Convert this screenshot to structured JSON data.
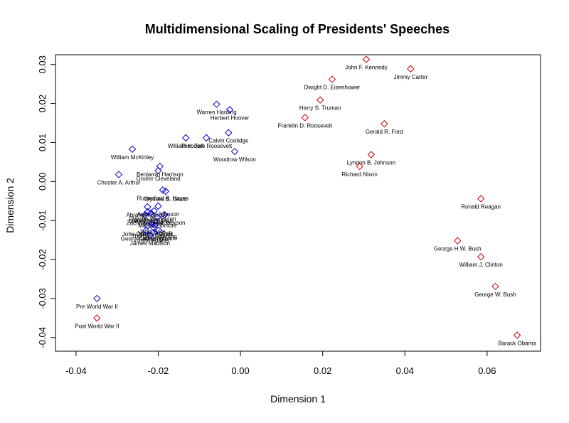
{
  "chart_data": {
    "type": "scatter",
    "title": "Multidimensional Scaling of Presidents' Speeches",
    "xlabel": "Dimension 1",
    "ylabel": "Dimension 2",
    "xlim": [
      -0.045,
      0.073
    ],
    "ylim": [
      -0.0435,
      0.0325
    ],
    "x_ticks": [
      -0.04,
      -0.02,
      0.0,
      0.02,
      0.04,
      0.06
    ],
    "x_tick_labels": [
      "-0.04",
      "-0.02",
      "0.00",
      "0.02",
      "0.04",
      "0.06"
    ],
    "y_ticks": [
      -0.04,
      -0.03,
      -0.02,
      -0.01,
      0.0,
      0.01,
      0.02,
      0.03
    ],
    "y_tick_labels": [
      "-0.04",
      "-0.03",
      "-0.02",
      "-0.01",
      "0.00",
      "0.01",
      "0.02",
      "0.03"
    ],
    "grid": false,
    "marker": "diamond",
    "colors": {
      "pre_war": "#0000cc",
      "post_war": "#cc0000"
    },
    "points": [
      {
        "label": "Pre World War II",
        "x": -0.0349,
        "y": -0.03,
        "group": "pre_war"
      },
      {
        "label": "Post World War II",
        "x": -0.0349,
        "y": -0.035,
        "group": "post_war"
      },
      {
        "label": "John F. Kennedy",
        "x": 0.0306,
        "y": 0.0313,
        "group": "post_war"
      },
      {
        "label": "Jimmy Carter",
        "x": 0.0414,
        "y": 0.0289,
        "group": "post_war"
      },
      {
        "label": "Dwight D. Eisenhower",
        "x": 0.0223,
        "y": 0.0262,
        "group": "post_war"
      },
      {
        "label": "Harry S. Truman",
        "x": 0.0194,
        "y": 0.0209,
        "group": "post_war"
      },
      {
        "label": "Franklin D. Roosevelt",
        "x": 0.0157,
        "y": 0.0164,
        "group": "post_war"
      },
      {
        "label": "Gerald R. Ford",
        "x": 0.035,
        "y": 0.0148,
        "group": "post_war"
      },
      {
        "label": "Lyndon B. Johnson",
        "x": 0.0318,
        "y": 0.0069,
        "group": "post_war"
      },
      {
        "label": "Richard Nixon",
        "x": 0.029,
        "y": 0.0039,
        "group": "post_war"
      },
      {
        "label": "Ronald Reagan",
        "x": 0.0585,
        "y": -0.0044,
        "group": "post_war"
      },
      {
        "label": "George H.W. Bush",
        "x": 0.0528,
        "y": -0.0152,
        "group": "post_war"
      },
      {
        "label": "William J. Clinton",
        "x": 0.0585,
        "y": -0.0193,
        "group": "post_war"
      },
      {
        "label": "George W. Bush",
        "x": 0.062,
        "y": -0.0269,
        "group": "post_war"
      },
      {
        "label": "Barack Obama",
        "x": 0.0673,
        "y": -0.0394,
        "group": "post_war"
      },
      {
        "label": "Warren Harding",
        "x": -0.0058,
        "y": 0.0198,
        "group": "pre_war"
      },
      {
        "label": "Herbert Hoover",
        "x": -0.0026,
        "y": 0.0184,
        "group": "pre_war"
      },
      {
        "label": "Calvin Coolidge",
        "x": -0.0029,
        "y": 0.0125,
        "group": "pre_war"
      },
      {
        "label": "William H. Taft",
        "x": -0.0133,
        "y": 0.0112,
        "group": "pre_war"
      },
      {
        "label": "Theodore Roosevelt",
        "x": -0.0083,
        "y": 0.0112,
        "group": "pre_war"
      },
      {
        "label": "Woodrow Wilson",
        "x": -0.0014,
        "y": 0.0077,
        "group": "pre_war"
      },
      {
        "label": "William McKinley",
        "x": -0.0263,
        "y": 0.0083,
        "group": "pre_war"
      },
      {
        "label": "Benjamin Harrison",
        "x": -0.0196,
        "y": 0.0039,
        "group": "pre_war"
      },
      {
        "label": "Grover Cleveland",
        "x": -0.02,
        "y": 0.0028,
        "group": "pre_war"
      },
      {
        "label": "Chester A. Arthur",
        "x": -0.0296,
        "y": 0.0018,
        "group": "pre_war"
      },
      {
        "label": "Rutherford B. Hayes",
        "x": -0.0189,
        "y": -0.0022,
        "group": "pre_war"
      },
      {
        "label": "Ulysses S. Grant",
        "x": -0.0182,
        "y": -0.0025,
        "group": "pre_war"
      },
      {
        "label": "Andrew Johnson",
        "x": -0.02,
        "y": -0.0063,
        "group": "pre_war"
      },
      {
        "label": "Abraham Lincoln",
        "x": -0.0226,
        "y": -0.0065,
        "group": "pre_war"
      },
      {
        "label": "Martin Van Buren",
        "x": -0.021,
        "y": -0.0075,
        "group": "pre_war"
      },
      {
        "label": "Franklin Pierce",
        "x": -0.0226,
        "y": -0.0078,
        "group": "pre_war"
      },
      {
        "label": "James Buchanan",
        "x": -0.0218,
        "y": -0.0081,
        "group": "pre_war"
      },
      {
        "label": "Zachary Taylor",
        "x": -0.0232,
        "y": -0.0086,
        "group": "pre_war"
      },
      {
        "label": "Andrew Jackson",
        "x": -0.0185,
        "y": -0.0085,
        "group": "pre_war"
      },
      {
        "label": "Millard Fillmore",
        "x": -0.0202,
        "y": -0.0092,
        "group": "pre_war"
      },
      {
        "label": "John Tyler",
        "x": -0.0215,
        "y": -0.0108,
        "group": "pre_war"
      },
      {
        "label": "James K. Polk",
        "x": -0.0208,
        "y": -0.0112,
        "group": "pre_war"
      },
      {
        "label": "John Quincy Adams",
        "x": -0.0226,
        "y": -0.0114,
        "group": "pre_war"
      },
      {
        "label": "Thomas Jefferson",
        "x": -0.021,
        "y": -0.012,
        "group": "pre_war"
      },
      {
        "label": "James Monroe",
        "x": -0.0199,
        "y": -0.0125,
        "group": "pre_war"
      },
      {
        "label": "John Adams",
        "x": -0.0212,
        "y": -0.0131,
        "group": "pre_war"
      },
      {
        "label": "George Washington",
        "x": -0.023,
        "y": -0.0126,
        "group": "pre_war"
      },
      {
        "label": "James Madison",
        "x": -0.022,
        "y": -0.0138,
        "group": "pre_war"
      }
    ]
  }
}
